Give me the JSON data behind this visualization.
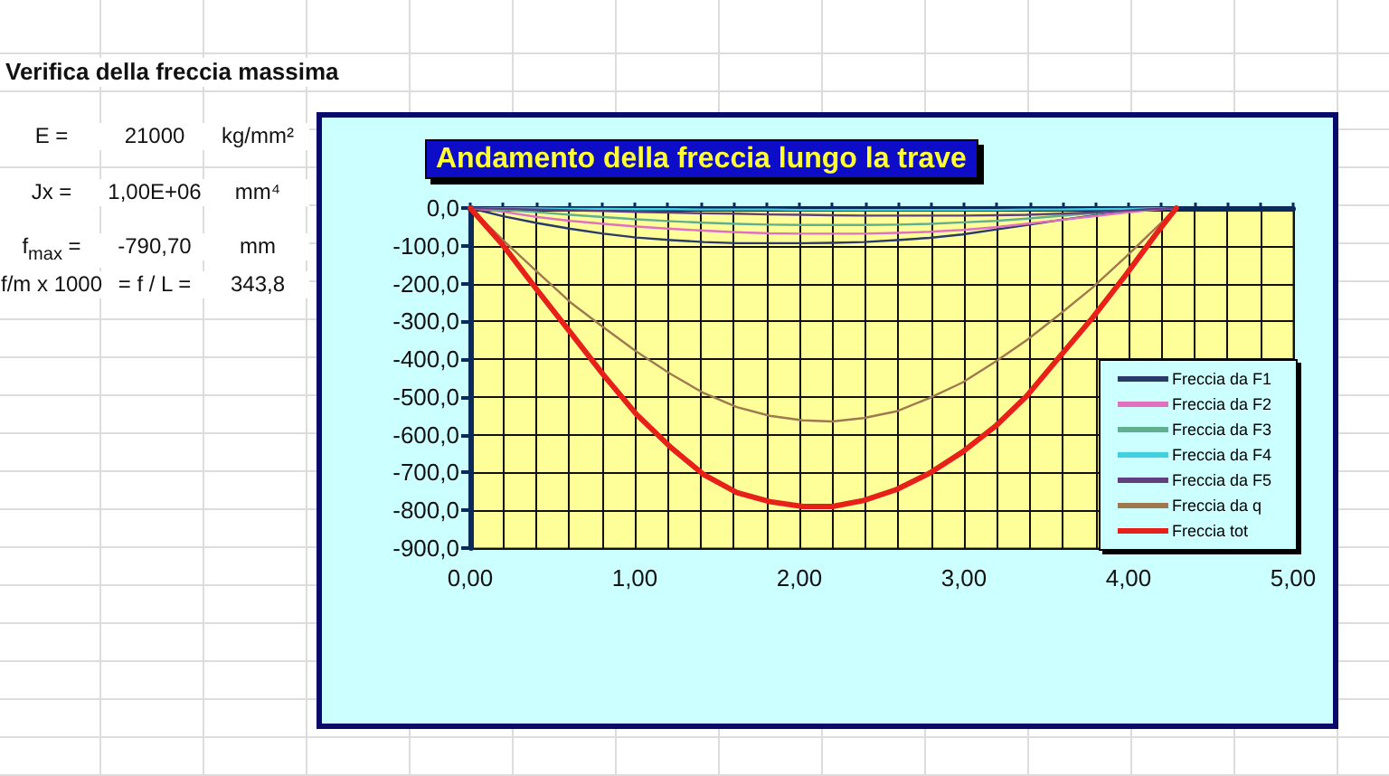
{
  "chart_data": {
    "type": "line",
    "title": "Andamento della freccia lungo la trave",
    "annotations": [
      "Verifica della freccia massima",
      "E =",
      "21000",
      "kg/mm²",
      "Jx =",
      "1,00E+06",
      "mm⁴",
      "f$_{max}$ =",
      "-790,70",
      "mm",
      "f/m x 1000",
      "= f / L =",
      "343,8"
    ],
    "x": [
      0,
      0.2,
      0.41,
      0.61,
      0.81,
      1.01,
      1.22,
      1.42,
      1.62,
      1.82,
      2.02,
      2.2,
      2.39,
      2.59,
      2.79,
      2.99,
      3.19,
      3.38,
      3.58,
      3.78,
      3.98,
      4.17,
      4.29
    ],
    "series": [
      {
        "name": "Freccia da F1",
        "color": "#2a3a6a",
        "values": [
          0,
          -22,
          -40,
          -55,
          -68,
          -78,
          -85,
          -90,
          -93,
          -93,
          -93,
          -92,
          -90,
          -85,
          -79,
          -70,
          -57,
          -45,
          -32,
          -20,
          -10,
          -3,
          0
        ]
      },
      {
        "name": "Freccia da F2",
        "color": "#e070c0",
        "values": [
          0,
          -10,
          -24,
          -34,
          -42,
          -49,
          -55,
          -60,
          -64,
          -67,
          -68,
          -68,
          -68,
          -66,
          -63,
          -58,
          -51,
          -42,
          -32,
          -22,
          -12,
          -4,
          0
        ]
      },
      {
        "name": "Freccia da F3",
        "color": "#60b090",
        "values": [
          0,
          -5,
          -11,
          -18,
          -24,
          -30,
          -35,
          -39,
          -42,
          -44,
          -45,
          -45,
          -45,
          -44,
          -42,
          -38,
          -34,
          -28,
          -21,
          -14,
          -7,
          -2,
          0
        ]
      },
      {
        "name": "Freccia da F4",
        "color": "#40d0e0",
        "values": [
          0,
          -1,
          -1,
          -2,
          -2,
          -3,
          -3,
          -4,
          -4,
          -4,
          -5,
          -5,
          -5,
          -5,
          -5,
          -5,
          -5,
          -4,
          -4,
          -3,
          -2,
          -1,
          0
        ]
      },
      {
        "name": "Freccia da F5",
        "color": "#604080",
        "values": [
          0,
          -2,
          -4,
          -6,
          -8,
          -10,
          -12,
          -14,
          -15,
          -17,
          -18,
          -19,
          -20,
          -20,
          -20,
          -20,
          -19,
          -18,
          -15,
          -12,
          -7,
          -2,
          0
        ]
      },
      {
        "name": "Freccia da q",
        "color": "#a07850",
        "values": [
          0,
          -85,
          -170,
          -250,
          -316,
          -380,
          -440,
          -490,
          -527,
          -550,
          -562,
          -565,
          -556,
          -538,
          -503,
          -462,
          -407,
          -350,
          -282,
          -211,
          -131,
          -51,
          0
        ]
      },
      {
        "name": "Freccia tot",
        "color": "#e8201a",
        "values": [
          0,
          -99,
          -219,
          -330,
          -442,
          -546,
          -634,
          -706,
          -753,
          -777,
          -790,
          -790,
          -774,
          -745,
          -702,
          -646,
          -578,
          -498,
          -394,
          -291,
          -179,
          -67,
          0
        ]
      }
    ],
    "xlim": [
      0,
      5
    ],
    "xticks": [
      {
        "value": 0,
        "label": "0,00"
      },
      {
        "value": 0.2,
        "label": null
      },
      {
        "value": 0.4,
        "label": null
      },
      {
        "value": 0.6,
        "label": null
      },
      {
        "value": 0.8,
        "label": null
      },
      {
        "value": 1,
        "label": "1,00"
      },
      {
        "value": 1.2,
        "label": null
      },
      {
        "value": 1.4,
        "label": null
      },
      {
        "value": 1.6,
        "label": null
      },
      {
        "value": 1.8,
        "label": null
      },
      {
        "value": 2,
        "label": "2,00"
      },
      {
        "value": 2.2,
        "label": null
      },
      {
        "value": 2.4,
        "label": null
      },
      {
        "value": 2.6,
        "label": null
      },
      {
        "value": 2.8,
        "label": null
      },
      {
        "value": 3,
        "label": "3,00"
      },
      {
        "value": 3.2,
        "label": null
      },
      {
        "value": 3.4,
        "label": null
      },
      {
        "value": 3.6,
        "label": null
      },
      {
        "value": 3.8,
        "label": null
      },
      {
        "value": 4,
        "label": "4,00"
      },
      {
        "value": 4.2,
        "label": null
      },
      {
        "value": 4.4,
        "label": null
      },
      {
        "value": 4.6,
        "label": null
      },
      {
        "value": 4.8,
        "label": null
      },
      {
        "value": 5,
        "label": "5,00"
      }
    ],
    "ylim": [
      -900,
      0
    ],
    "yticks": [
      {
        "value": -900,
        "label": "-900,0"
      },
      {
        "value": -800,
        "label": "-800,0"
      },
      {
        "value": -700,
        "label": "-700,0"
      },
      {
        "value": -600,
        "label": "-600,0"
      },
      {
        "value": -500,
        "label": "-500,0"
      },
      {
        "value": -400,
        "label": "-400,0"
      },
      {
        "value": -300,
        "label": "-300,0"
      },
      {
        "value": -200,
        "label": "-200,0"
      },
      {
        "value": -100,
        "label": "-100,0"
      },
      {
        "value": 0,
        "label": "0,0"
      }
    ],
    "grid": true,
    "legend": "bottom right",
    "marker": "none",
    "line_style": "solid"
  }
}
